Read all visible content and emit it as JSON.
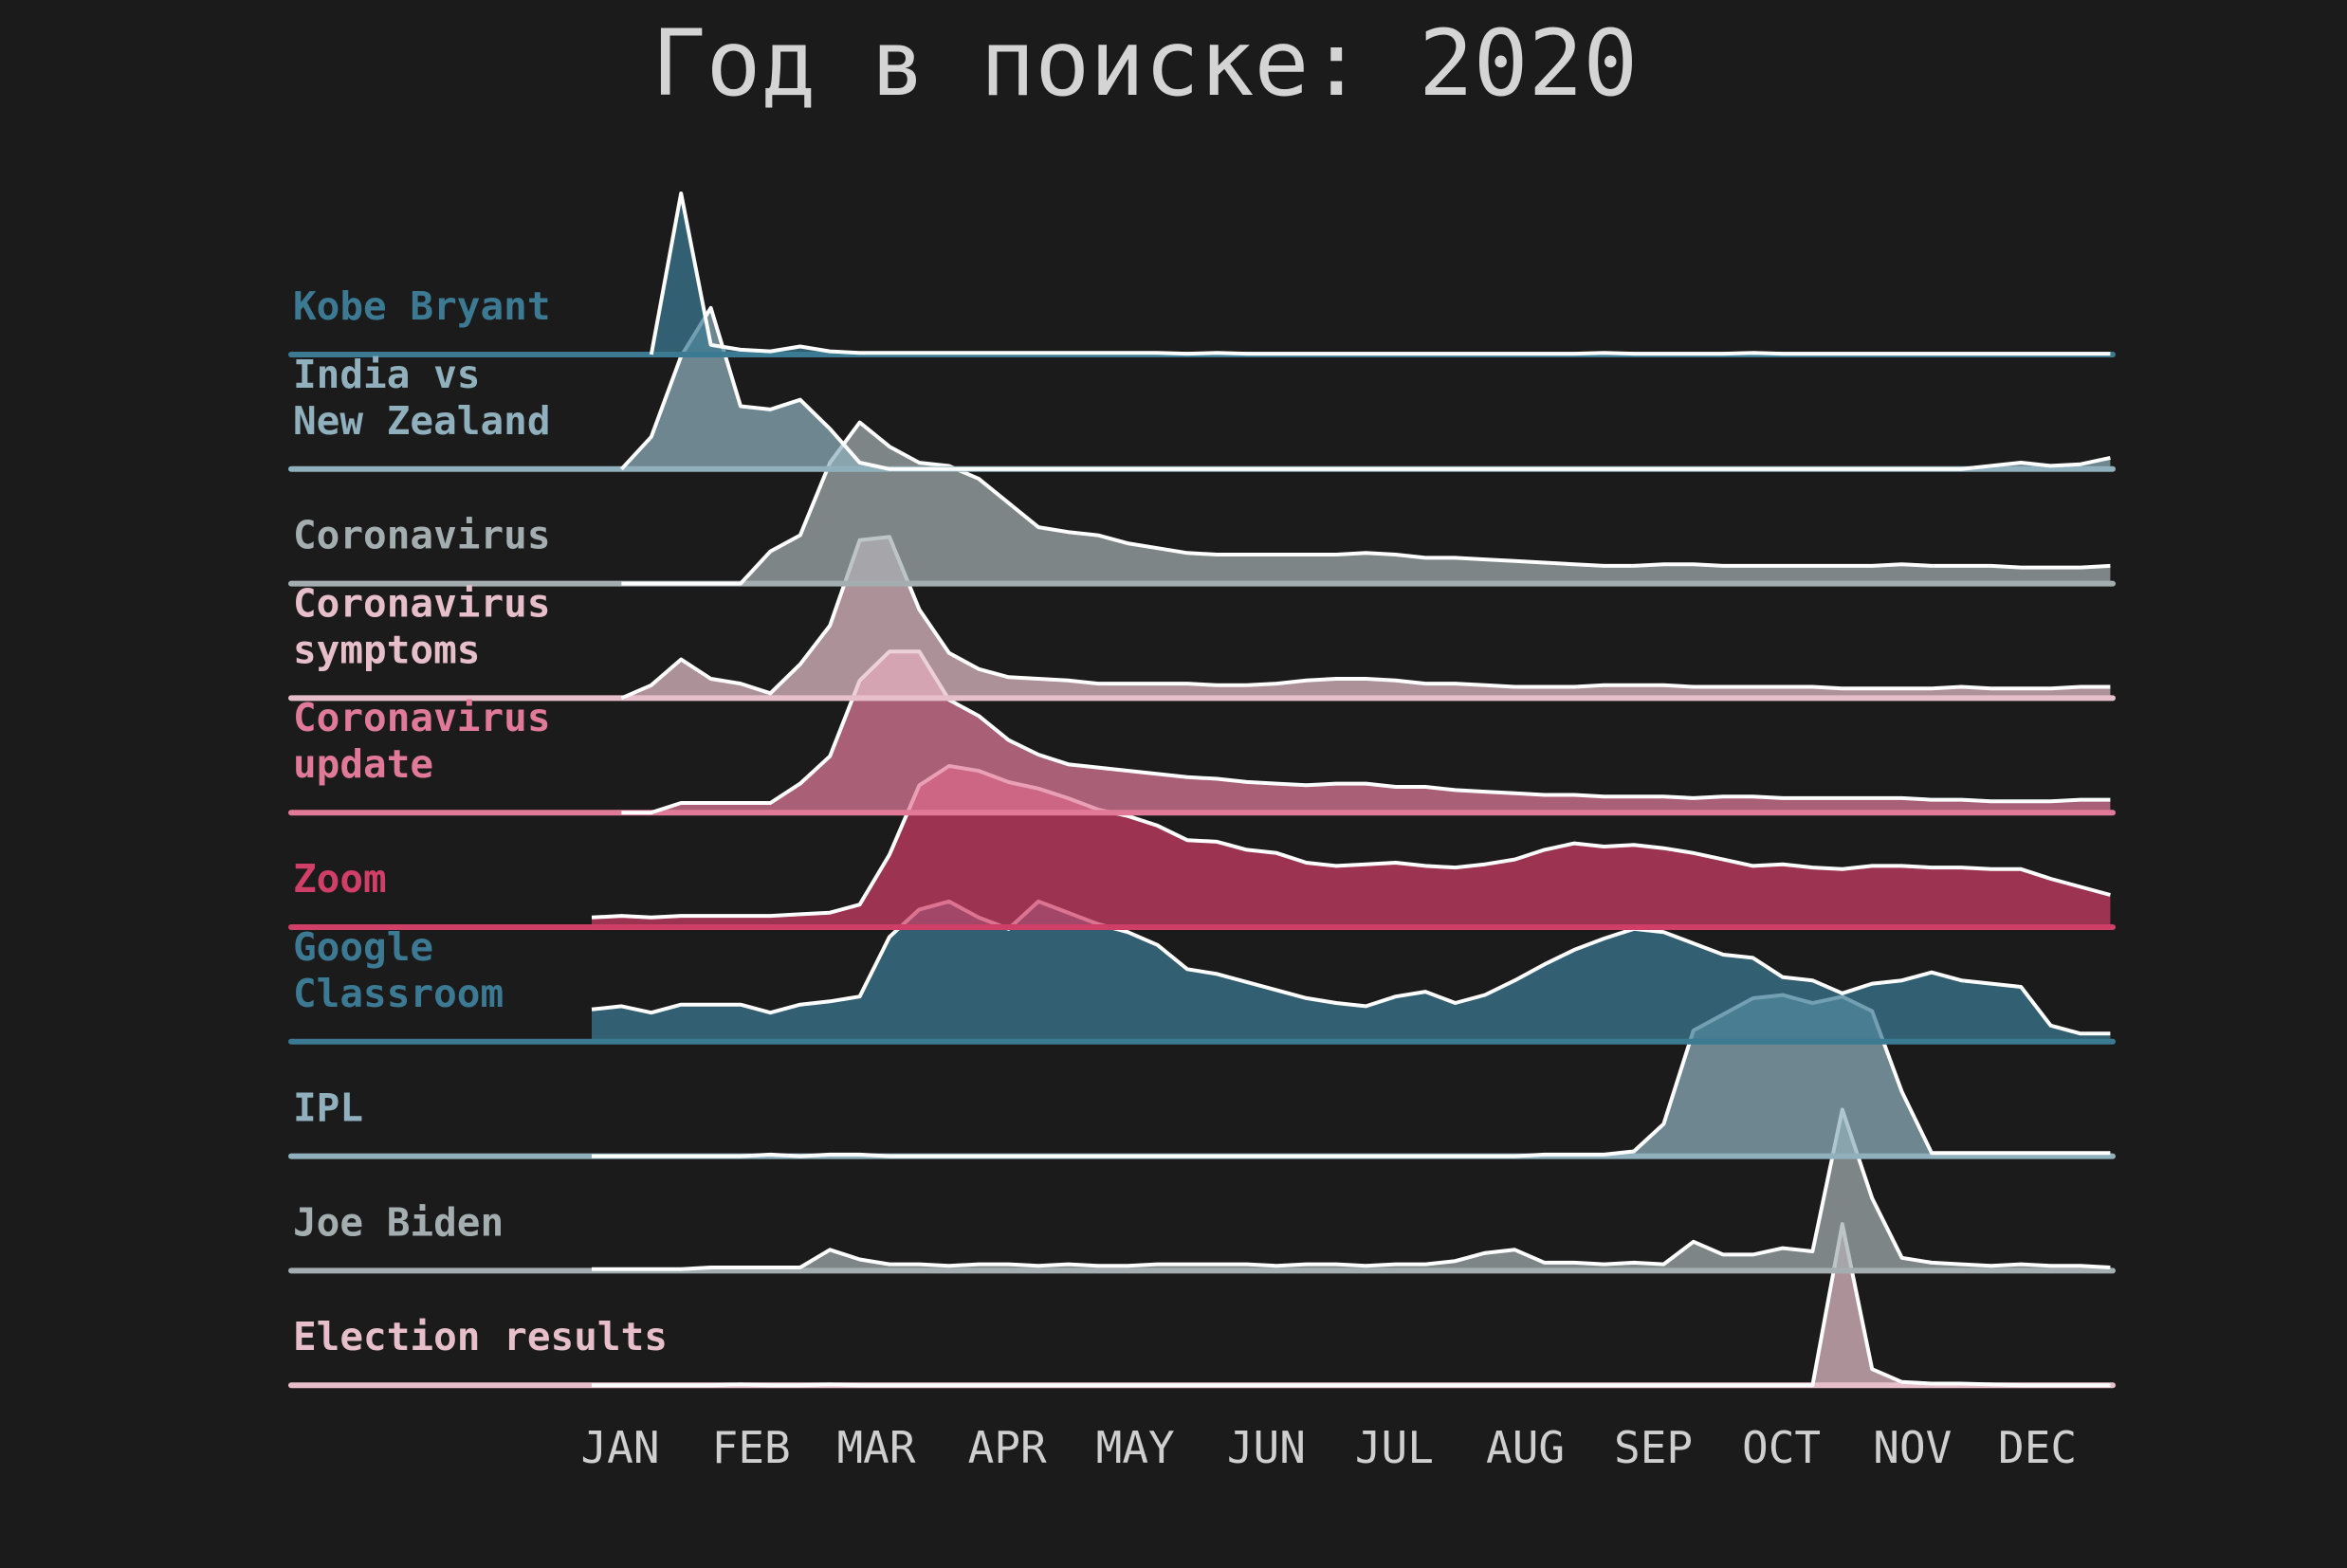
{
  "chart_data": {
    "type": "area",
    "title": "Год в поиске: 2020",
    "xlabel": "",
    "ylabel": "",
    "x_tick_labels": [
      "JAN",
      "FEB",
      "MAR",
      "APR",
      "MAY",
      "JUN",
      "JUL",
      "AUG",
      "SEP",
      "OCT",
      "NOV",
      "DEC"
    ],
    "x_unit": "week of 2020 (week 0 = first week of January)",
    "x_range": [
      -11,
      51
    ],
    "grid": false,
    "legend": "none; series names printed at left of each ridge",
    "line_color": "#ffffff",
    "background_color": "#1b1b1b",
    "title_color": "#d4d4d4",
    "tick_color": "#cfcfcf",
    "series": [
      {
        "name": "Kobe Bryant",
        "color": "#3c7a93",
        "label_lines": [
          "Kobe Bryant"
        ],
        "x": [
          2,
          3,
          4,
          5,
          6,
          7,
          8,
          9,
          10,
          11,
          12,
          13,
          14,
          15,
          16,
          17,
          18,
          19,
          20,
          21,
          22,
          23,
          24,
          25,
          26,
          27,
          28,
          29,
          30,
          31,
          32,
          33,
          34,
          35,
          36,
          37,
          38,
          39,
          40,
          41,
          42,
          43,
          44,
          45,
          46,
          47,
          48,
          49,
          50,
          51
        ],
        "values": [
          0,
          100,
          6,
          3,
          2,
          5,
          2,
          1,
          1,
          1,
          1,
          1,
          1,
          1,
          1,
          1,
          1,
          1,
          0.5,
          1,
          0.5,
          0.5,
          0.5,
          0.5,
          0.5,
          0.5,
          0.5,
          0.5,
          0.5,
          0.5,
          0.5,
          0.5,
          1,
          0.5,
          0.5,
          0.5,
          0.5,
          1,
          0.5,
          0.5,
          0.5,
          0.5,
          0.5,
          0.5,
          0.5,
          0.5,
          0.5,
          0.5,
          0.5,
          0.5
        ]
      },
      {
        "name": "India vs New Zealand",
        "color": "#8fb0bc",
        "label_lines": [
          "India vs",
          "New Zealand"
        ],
        "x": [
          1,
          2,
          3,
          4,
          5,
          6,
          7,
          8,
          9,
          10,
          11,
          12,
          13,
          14,
          15,
          16,
          17,
          18,
          19,
          20,
          21,
          22,
          23,
          24,
          25,
          26,
          27,
          28,
          29,
          30,
          31,
          32,
          33,
          34,
          35,
          36,
          37,
          38,
          39,
          40,
          41,
          42,
          43,
          44,
          45,
          46,
          47,
          48,
          49,
          50,
          51
        ],
        "values": [
          0,
          20,
          70,
          100,
          39,
          37,
          43,
          25,
          4,
          0,
          0,
          0,
          0,
          0,
          0,
          0,
          0,
          0,
          0,
          0,
          0,
          0,
          0,
          0,
          0,
          0,
          0,
          0,
          0,
          0,
          0,
          0,
          0,
          0,
          0,
          0,
          0,
          0,
          0,
          0,
          0,
          0,
          0,
          0,
          0,
          0,
          2,
          4,
          2,
          3,
          7
        ]
      },
      {
        "name": "Coronavirus",
        "color": "#a4aeb0",
        "label_lines": [
          "Coronavirus"
        ],
        "x": [
          1,
          2,
          3,
          4,
          5,
          6,
          7,
          8,
          9,
          10,
          11,
          12,
          13,
          14,
          15,
          16,
          17,
          18,
          19,
          20,
          21,
          22,
          23,
          24,
          25,
          26,
          27,
          28,
          29,
          30,
          31,
          32,
          33,
          34,
          35,
          36,
          37,
          38,
          39,
          40,
          41,
          42,
          43,
          44,
          45,
          46,
          47,
          48,
          49,
          50,
          51
        ],
        "values": [
          0,
          0,
          0,
          0,
          0,
          20,
          30,
          75,
          100,
          85,
          75,
          73,
          65,
          50,
          35,
          32,
          30,
          25,
          22,
          19,
          18,
          18,
          18,
          18,
          18,
          19,
          18,
          16,
          16,
          15,
          14,
          13,
          12,
          11,
          11,
          12,
          12,
          11,
          11,
          11,
          11,
          11,
          11,
          12,
          11,
          11,
          11,
          10,
          10,
          10,
          11
        ]
      },
      {
        "name": "Coronavirus symptoms",
        "color": "#e6bfca",
        "label_lines": [
          "Coronavirus",
          "symptoms"
        ],
        "x": [
          1,
          2,
          3,
          4,
          5,
          6,
          7,
          8,
          9,
          10,
          11,
          12,
          13,
          14,
          15,
          16,
          17,
          18,
          19,
          20,
          21,
          22,
          23,
          24,
          25,
          26,
          27,
          28,
          29,
          30,
          31,
          32,
          33,
          34,
          35,
          36,
          37,
          38,
          39,
          40,
          41,
          42,
          43,
          44,
          45,
          46,
          47,
          48,
          49,
          50,
          51
        ],
        "values": [
          0,
          8,
          24,
          12,
          9,
          3,
          21,
          45,
          98,
          100,
          55,
          28,
          18,
          13,
          12,
          11,
          9,
          9,
          9,
          9,
          8,
          8,
          9,
          11,
          12,
          12,
          11,
          9,
          9,
          8,
          7,
          7,
          7,
          8,
          8,
          8,
          7,
          7,
          7,
          7,
          7,
          6,
          6,
          6,
          6,
          7,
          6,
          6,
          6,
          7,
          7
        ]
      },
      {
        "name": "Coronavirus update",
        "color": "#e07a98",
        "label_lines": [
          "Coronavirus",
          "update"
        ],
        "x": [
          1,
          2,
          3,
          4,
          5,
          6,
          7,
          8,
          9,
          10,
          11,
          12,
          13,
          14,
          15,
          16,
          17,
          18,
          19,
          20,
          21,
          22,
          23,
          24,
          25,
          26,
          27,
          28,
          29,
          30,
          31,
          32,
          33,
          34,
          35,
          36,
          37,
          38,
          39,
          40,
          41,
          42,
          43,
          44,
          45,
          46,
          47,
          48,
          49,
          50,
          51
        ],
        "values": [
          0,
          0,
          6,
          6,
          6,
          6,
          18,
          35,
          82,
          100,
          100,
          70,
          60,
          45,
          36,
          30,
          28,
          26,
          24,
          22,
          21,
          19,
          18,
          17,
          18,
          18,
          16,
          16,
          14,
          13,
          12,
          11,
          11,
          10,
          10,
          10,
          9,
          10,
          10,
          9,
          9,
          9,
          9,
          9,
          8,
          8,
          7,
          7,
          7,
          8,
          8
        ]
      },
      {
        "name": "Zoom",
        "color": "#cf3f67",
        "label_lines": [
          "Zoom"
        ],
        "x": [
          0,
          1,
          2,
          3,
          4,
          5,
          6,
          7,
          8,
          9,
          10,
          11,
          12,
          13,
          14,
          15,
          16,
          17,
          18,
          19,
          20,
          21,
          22,
          23,
          24,
          25,
          26,
          27,
          28,
          29,
          30,
          31,
          32,
          33,
          34,
          35,
          36,
          37,
          38,
          39,
          40,
          41,
          42,
          43,
          44,
          45,
          46,
          47,
          48,
          49,
          50,
          51
        ],
        "values": [
          6,
          7,
          6,
          7,
          7,
          7,
          7,
          8,
          9,
          14,
          45,
          88,
          100,
          97,
          90,
          86,
          80,
          73,
          69,
          63,
          54,
          53,
          48,
          46,
          40,
          38,
          39,
          40,
          38,
          37,
          39,
          42,
          48,
          52,
          50,
          51,
          49,
          46,
          42,
          38,
          39,
          37,
          36,
          38,
          38,
          37,
          37,
          36,
          36,
          30,
          25,
          20
        ]
      },
      {
        "name": "Google Classroom",
        "color": "#3c7a93",
        "label_lines": [
          "Google",
          "Classroom"
        ],
        "x": [
          0,
          1,
          2,
          3,
          4,
          5,
          6,
          7,
          8,
          9,
          10,
          11,
          12,
          13,
          14,
          15,
          16,
          17,
          18,
          19,
          20,
          21,
          22,
          23,
          24,
          25,
          26,
          27,
          28,
          29,
          30,
          31,
          32,
          33,
          34,
          35,
          36,
          37,
          38,
          39,
          40,
          41,
          42,
          43,
          44,
          45,
          46,
          47,
          48,
          49,
          50,
          51
        ],
        "values": [
          20,
          22,
          18,
          23,
          23,
          23,
          18,
          23,
          25,
          28,
          65,
          82,
          87,
          77,
          70,
          87,
          80,
          73,
          68,
          60,
          45,
          42,
          37,
          32,
          27,
          24,
          22,
          28,
          31,
          24,
          29,
          38,
          48,
          57,
          64,
          70,
          68,
          61,
          54,
          52,
          40,
          38,
          30,
          36,
          38,
          43,
          38,
          36,
          34,
          10,
          5,
          5
        ]
      },
      {
        "name": "IPL",
        "color": "#8fb0bc",
        "label_lines": [
          "IPL"
        ],
        "x": [
          0,
          1,
          2,
          3,
          4,
          5,
          6,
          7,
          8,
          9,
          10,
          11,
          12,
          13,
          14,
          15,
          16,
          17,
          18,
          19,
          20,
          21,
          22,
          23,
          24,
          25,
          26,
          27,
          28,
          29,
          30,
          31,
          32,
          33,
          34,
          35,
          36,
          37,
          38,
          39,
          40,
          41,
          42,
          43,
          44,
          45,
          46,
          47,
          48,
          49,
          50,
          51
        ],
        "values": [
          0,
          0,
          0,
          0,
          0,
          0,
          1,
          0,
          1,
          1,
          0,
          0,
          0,
          0,
          0,
          0,
          0,
          0,
          0,
          0,
          0,
          0,
          0,
          0,
          0,
          0,
          0,
          0,
          0,
          0,
          0,
          0,
          1,
          1,
          1,
          3,
          20,
          78,
          88,
          98,
          100,
          95,
          99,
          90,
          40,
          2,
          2,
          2,
          2,
          2,
          2,
          2
        ]
      },
      {
        "name": "Joe Biden",
        "color": "#a4aeb0",
        "label_lines": [
          "Joe Biden"
        ],
        "x": [
          0,
          1,
          2,
          3,
          4,
          5,
          6,
          7,
          8,
          9,
          10,
          11,
          12,
          13,
          14,
          15,
          16,
          17,
          18,
          19,
          20,
          21,
          22,
          23,
          24,
          25,
          26,
          27,
          28,
          29,
          30,
          31,
          32,
          33,
          34,
          35,
          36,
          37,
          38,
          39,
          40,
          41,
          42,
          43,
          44,
          45,
          46,
          47,
          48,
          49,
          50,
          51
        ],
        "values": [
          1,
          1,
          1,
          1,
          2,
          2,
          2,
          2,
          13,
          7,
          4,
          4,
          3,
          4,
          4,
          3,
          4,
          3,
          3,
          4,
          4,
          4,
          4,
          3,
          4,
          4,
          3,
          4,
          4,
          6,
          11,
          13,
          5,
          5,
          4,
          5,
          4,
          18,
          10,
          10,
          14,
          12,
          100,
          45,
          8,
          5,
          4,
          3,
          4,
          3,
          3,
          2
        ]
      },
      {
        "name": "Election results",
        "color": "#e6bfca",
        "label_lines": [
          "Election results"
        ],
        "x": [
          0,
          1,
          2,
          3,
          4,
          5,
          6,
          7,
          8,
          9,
          10,
          11,
          12,
          13,
          14,
          15,
          16,
          17,
          18,
          19,
          20,
          21,
          22,
          23,
          24,
          25,
          26,
          27,
          28,
          29,
          30,
          31,
          32,
          33,
          34,
          35,
          36,
          37,
          38,
          39,
          40,
          41,
          42,
          43,
          44,
          45,
          46,
          47,
          48,
          49,
          50,
          51
        ],
        "values": [
          0,
          0,
          0,
          0,
          0,
          0.5,
          0,
          0,
          0.5,
          0,
          0,
          0,
          0,
          0,
          0,
          0,
          0,
          0,
          0,
          0,
          0,
          0,
          0,
          0,
          0,
          0,
          0,
          0,
          0,
          0,
          0,
          0,
          0,
          0,
          0,
          0,
          0,
          0,
          0,
          0,
          0,
          0,
          100,
          10,
          2,
          1,
          1,
          0.5,
          0,
          0,
          0,
          0
        ]
      }
    ]
  }
}
